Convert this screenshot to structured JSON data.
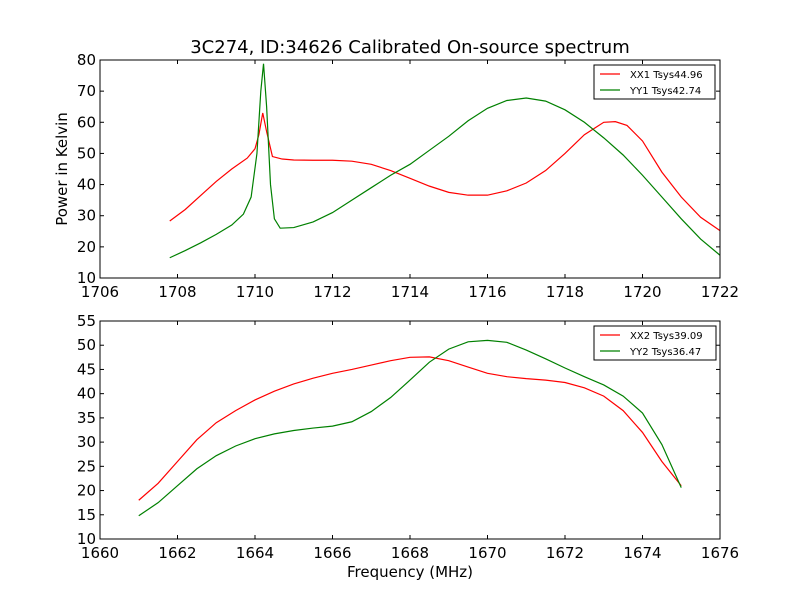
{
  "chart_data": [
    {
      "type": "line",
      "title": "3C274, ID:34626 Calibrated On-source spectrum",
      "xlabel": "",
      "ylabel": "Power in Kelvin",
      "xlim": [
        1706,
        1722
      ],
      "ylim": [
        10,
        80
      ],
      "xticks": [
        "1706",
        "1708",
        "1710",
        "1712",
        "1714",
        "1716",
        "1718",
        "1720",
        "1722"
      ],
      "yticks": [
        "10",
        "20",
        "30",
        "40",
        "50",
        "60",
        "70",
        "80"
      ],
      "legend_position": "top-right",
      "series": [
        {
          "name": "XX1 Tsys44.96",
          "color": "#ff0000",
          "points": [
            [
              1707.8,
              28.3
            ],
            [
              1708.2,
              32
            ],
            [
              1708.6,
              36.5
            ],
            [
              1709.0,
              41
            ],
            [
              1709.4,
              45
            ],
            [
              1709.8,
              48.5
            ],
            [
              1710.0,
              51.5
            ],
            [
              1710.1,
              56
            ],
            [
              1710.2,
              63
            ],
            [
              1710.3,
              57
            ],
            [
              1710.45,
              49
            ],
            [
              1710.7,
              48.2
            ],
            [
              1711.0,
              47.9
            ],
            [
              1711.5,
              47.8
            ],
            [
              1712.0,
              47.8
            ],
            [
              1712.5,
              47.5
            ],
            [
              1713.0,
              46.5
            ],
            [
              1713.5,
              44.5
            ],
            [
              1714.0,
              42
            ],
            [
              1714.5,
              39.5
            ],
            [
              1715.0,
              37.5
            ],
            [
              1715.5,
              36.6
            ],
            [
              1716.0,
              36.6
            ],
            [
              1716.5,
              38
            ],
            [
              1717.0,
              40.5
            ],
            [
              1717.5,
              44.5
            ],
            [
              1718.0,
              50
            ],
            [
              1718.5,
              56
            ],
            [
              1719.0,
              60
            ],
            [
              1719.3,
              60.2
            ],
            [
              1719.6,
              59
            ],
            [
              1720.0,
              54
            ],
            [
              1720.5,
              44
            ],
            [
              1721.0,
              36
            ],
            [
              1721.5,
              29.5
            ],
            [
              1722.0,
              25.2
            ]
          ]
        },
        {
          "name": "YY1 Tsys42.74",
          "color": "#008000",
          "points": [
            [
              1707.8,
              16.5
            ],
            [
              1708.2,
              18.8
            ],
            [
              1708.6,
              21.3
            ],
            [
              1709.0,
              24
            ],
            [
              1709.4,
              27
            ],
            [
              1709.7,
              30.5
            ],
            [
              1709.9,
              36
            ],
            [
              1710.05,
              50
            ],
            [
              1710.15,
              70
            ],
            [
              1710.22,
              78.8
            ],
            [
              1710.3,
              65
            ],
            [
              1710.4,
              40
            ],
            [
              1710.5,
              29
            ],
            [
              1710.65,
              26
            ],
            [
              1711.0,
              26.2
            ],
            [
              1711.5,
              28
            ],
            [
              1712.0,
              31
            ],
            [
              1712.5,
              35
            ],
            [
              1713.0,
              39
            ],
            [
              1713.5,
              43
            ],
            [
              1714.0,
              46.5
            ],
            [
              1714.5,
              51
            ],
            [
              1715.0,
              55.5
            ],
            [
              1715.5,
              60.5
            ],
            [
              1716.0,
              64.5
            ],
            [
              1716.5,
              67
            ],
            [
              1717.0,
              67.8
            ],
            [
              1717.5,
              66.8
            ],
            [
              1718.0,
              64
            ],
            [
              1718.5,
              60
            ],
            [
              1719.0,
              55
            ],
            [
              1719.5,
              49.5
            ],
            [
              1720.0,
              43
            ],
            [
              1720.5,
              36
            ],
            [
              1721.0,
              29
            ],
            [
              1721.5,
              22.5
            ],
            [
              1722.0,
              17.3
            ]
          ]
        }
      ]
    },
    {
      "type": "line",
      "title": "",
      "xlabel": "Frequency (MHz)",
      "ylabel": "",
      "xlim": [
        1660,
        1676
      ],
      "ylim": [
        10,
        55
      ],
      "xticks": [
        "1660",
        "1662",
        "1664",
        "1666",
        "1668",
        "1670",
        "1672",
        "1674",
        "1676"
      ],
      "yticks": [
        "10",
        "15",
        "20",
        "25",
        "30",
        "35",
        "40",
        "45",
        "50",
        "55"
      ],
      "legend_position": "top-right",
      "series": [
        {
          "name": "XX2 Tsys39.09",
          "color": "#ff0000",
          "points": [
            [
              1661.0,
              18
            ],
            [
              1661.5,
              21.5
            ],
            [
              1662.0,
              26
            ],
            [
              1662.5,
              30.5
            ],
            [
              1663.0,
              34
            ],
            [
              1663.5,
              36.5
            ],
            [
              1664.0,
              38.7
            ],
            [
              1664.5,
              40.5
            ],
            [
              1665.0,
              42
            ],
            [
              1665.5,
              43.2
            ],
            [
              1666.0,
              44.2
            ],
            [
              1666.5,
              45
            ],
            [
              1667.0,
              45.9
            ],
            [
              1667.5,
              46.8
            ],
            [
              1668.0,
              47.5
            ],
            [
              1668.5,
              47.6
            ],
            [
              1669.0,
              46.8
            ],
            [
              1669.5,
              45.5
            ],
            [
              1670.0,
              44.2
            ],
            [
              1670.5,
              43.5
            ],
            [
              1671.0,
              43.1
            ],
            [
              1671.5,
              42.8
            ],
            [
              1672.0,
              42.3
            ],
            [
              1672.5,
              41.2
            ],
            [
              1673.0,
              39.5
            ],
            [
              1673.5,
              36.5
            ],
            [
              1674.0,
              32
            ],
            [
              1674.5,
              26
            ],
            [
              1675.0,
              21
            ]
          ]
        },
        {
          "name": "YY2 Tsys36.47",
          "color": "#008000",
          "points": [
            [
              1661.0,
              14.8
            ],
            [
              1661.5,
              17.5
            ],
            [
              1662.0,
              21
            ],
            [
              1662.5,
              24.5
            ],
            [
              1663.0,
              27.2
            ],
            [
              1663.5,
              29.2
            ],
            [
              1664.0,
              30.7
            ],
            [
              1664.5,
              31.7
            ],
            [
              1665.0,
              32.4
            ],
            [
              1665.5,
              32.9
            ],
            [
              1666.0,
              33.3
            ],
            [
              1666.5,
              34.2
            ],
            [
              1667.0,
              36.3
            ],
            [
              1667.5,
              39.2
            ],
            [
              1668.0,
              42.8
            ],
            [
              1668.5,
              46.5
            ],
            [
              1669.0,
              49.2
            ],
            [
              1669.5,
              50.7
            ],
            [
              1670.0,
              51
            ],
            [
              1670.5,
              50.6
            ],
            [
              1671.0,
              49
            ],
            [
              1671.5,
              47.2
            ],
            [
              1672.0,
              45.3
            ],
            [
              1672.5,
              43.5
            ],
            [
              1673.0,
              41.8
            ],
            [
              1673.5,
              39.5
            ],
            [
              1674.0,
              36
            ],
            [
              1674.5,
              29.5
            ],
            [
              1675.0,
              20.6
            ]
          ]
        }
      ]
    }
  ]
}
